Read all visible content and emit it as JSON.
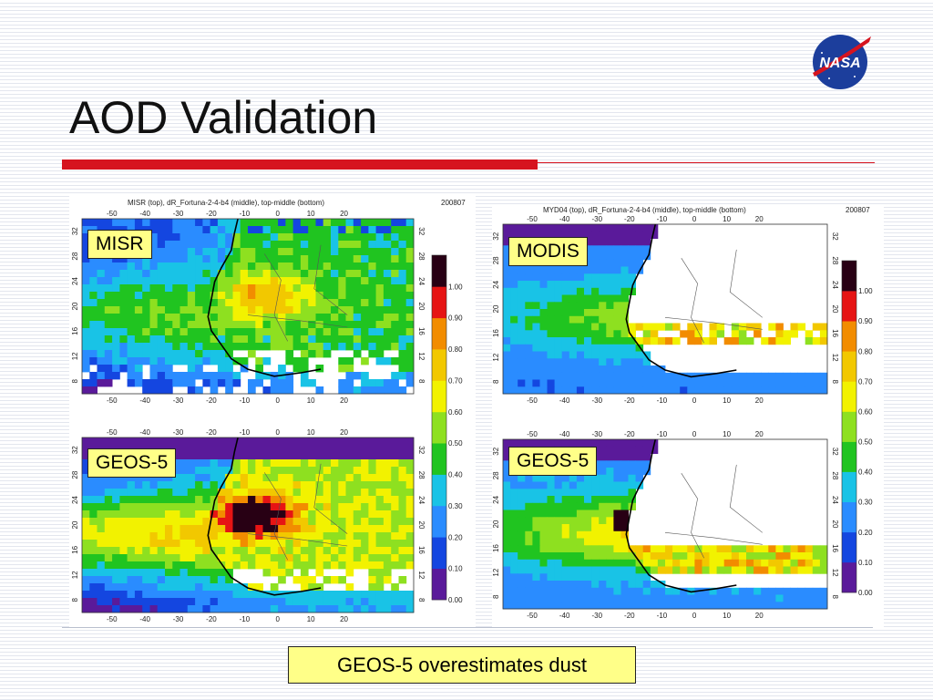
{
  "slide": {
    "title": "AOD Validation",
    "caption": "GEOS-5 overestimates dust",
    "logo_text": "NASA",
    "accent_color": "#d6141f",
    "caption_bg": "#ffff88"
  },
  "left_figure": {
    "header": "MISR (top), dR_Fortuna-2-4-b4 (middle), top-middle (bottom)",
    "date": "200807",
    "top_label": "MISR",
    "bottom_label": "GEOS-5"
  },
  "right_figure": {
    "header": "MYD04 (top), dR_Fortuna-2-4-b4 (middle), top-middle (bottom)",
    "date": "200807",
    "top_label": "MODIS",
    "bottom_label": "GEOS-5"
  },
  "axes": {
    "lon_ticks": [
      "-50",
      "-40",
      "-30",
      "-20",
      "-10",
      "0",
      "10",
      "20"
    ],
    "lat_ticks": [
      "8",
      "12",
      "16",
      "20",
      "24",
      "28",
      "32"
    ]
  },
  "colorbar": {
    "labels": [
      "0.00",
      "0.10",
      "0.20",
      "0.30",
      "0.40",
      "0.50",
      "0.60",
      "0.70",
      "0.80",
      "0.90",
      "1.00"
    ],
    "colors": [
      "#5a1a9a",
      "#1446e0",
      "#2a8cff",
      "#19c3e6",
      "#20c420",
      "#8ee020",
      "#f2f200",
      "#f2c800",
      "#f28c00",
      "#e61414",
      "#280014"
    ]
  }
}
